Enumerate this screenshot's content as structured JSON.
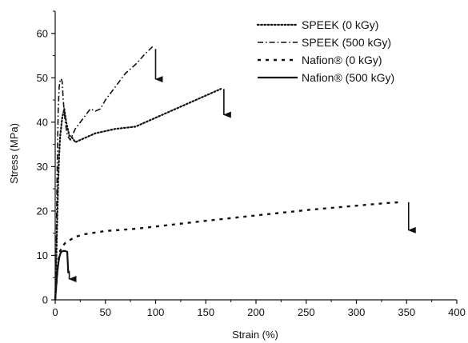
{
  "chart_data": {
    "type": "line",
    "xlabel": "Strain (%)",
    "ylabel": "Stress (MPa)",
    "xlim": [
      0,
      400
    ],
    "ylim": [
      0,
      65
    ],
    "xticks": [
      0,
      50,
      100,
      150,
      200,
      250,
      300,
      350,
      400
    ],
    "yticks": [
      0,
      10,
      20,
      30,
      40,
      50,
      60
    ],
    "grid": false,
    "legend_position": "top-right",
    "series": [
      {
        "name": "SPEEK (0 kGy)",
        "line_style": "dotted",
        "color": "#111111",
        "x": [
          0,
          1,
          2,
          3,
          4,
          5,
          7,
          9,
          11,
          14,
          17,
          20,
          25,
          30,
          40,
          50,
          60,
          80,
          100,
          120,
          140,
          155,
          165
        ],
        "y": [
          0,
          8,
          18,
          27,
          33,
          37,
          41,
          43,
          40,
          37,
          36.5,
          35.5,
          36,
          36.5,
          37.5,
          38,
          38.5,
          39,
          41,
          43,
          45,
          46.5,
          47.5
        ],
        "break_arrow": {
          "x": 168,
          "y_from": 47.5,
          "y_to": 41.5
        }
      },
      {
        "name": "SPEEK (500 kGy)",
        "line_style": "dashdot",
        "color": "#111111",
        "x": [
          0,
          1,
          2,
          3,
          4,
          5,
          6,
          7,
          8,
          10,
          12,
          15,
          20,
          25,
          30,
          35,
          40,
          45,
          50,
          60,
          70,
          80,
          90,
          97
        ],
        "y": [
          0,
          12,
          30,
          43,
          48,
          49.5,
          49.8,
          49,
          45,
          40,
          37,
          36,
          38.5,
          40,
          41.5,
          43,
          42.5,
          43,
          45,
          48,
          51,
          53,
          55.5,
          57
        ],
        "break_arrow": {
          "x": 100,
          "y_from": 56.5,
          "y_to": 49.5
        }
      },
      {
        "name": "Nafion® (0 kGy)",
        "line_style": "dashed",
        "color": "#111111",
        "x": [
          0,
          1,
          2,
          3,
          4,
          5,
          7,
          10,
          15,
          20,
          30,
          50,
          80,
          100,
          150,
          200,
          250,
          300,
          330,
          345
        ],
        "y": [
          0,
          3,
          6,
          8.5,
          10,
          11,
          12,
          12.8,
          13.5,
          14.2,
          14.8,
          15.5,
          16,
          16.5,
          17.8,
          19,
          20.2,
          21.2,
          21.8,
          22
        ],
        "break_arrow": {
          "x": 352,
          "y_from": 22,
          "y_to": 15.5
        }
      },
      {
        "name": "Nafion® (500 kGy)",
        "line_style": "solid",
        "color": "#111111",
        "x": [
          0,
          1,
          2,
          3,
          4,
          5,
          6,
          8,
          10,
          11,
          12,
          13
        ],
        "y": [
          0,
          3,
          6,
          8,
          9.5,
          10.3,
          10.8,
          11,
          11,
          10.9,
          10.8,
          6
        ],
        "break_arrow": {
          "x": 14,
          "y_from": 6.5,
          "y_to": 4.5
        }
      }
    ]
  }
}
